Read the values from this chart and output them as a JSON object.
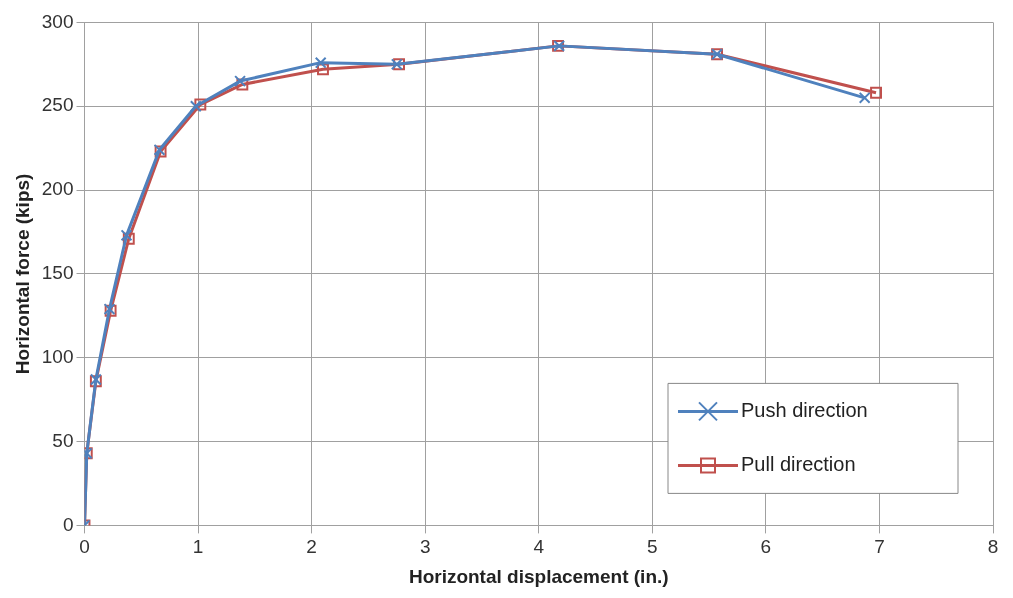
{
  "chart_data": {
    "type": "line",
    "xlabel": "Horizontal displacement (in.)",
    "ylabel": "Horizontal force (kips)",
    "xlim": [
      0,
      8
    ],
    "xticks": [
      0,
      1,
      2,
      3,
      4,
      5,
      6,
      7,
      8
    ],
    "ylim": [
      0,
      300
    ],
    "yticks": [
      0,
      50,
      100,
      150,
      200,
      250,
      300
    ],
    "grid": true,
    "legend": "bottom right",
    "series": [
      {
        "name": "Push direction",
        "color": "#4f81bd",
        "marker": "cross",
        "x": [
          0,
          0.02,
          0.1,
          0.22,
          0.37,
          0.66,
          0.98,
          1.37,
          2.08,
          2.75,
          4.18,
          5.57,
          6.87
        ],
        "values": [
          0,
          43,
          87,
          129,
          173,
          224,
          250,
          265,
          276,
          275,
          286,
          281,
          255
        ]
      },
      {
        "name": "Pull direction",
        "color": "#c0504d",
        "marker": "square",
        "x": [
          0,
          0.02,
          0.1,
          0.23,
          0.39,
          0.67,
          1.02,
          1.39,
          2.1,
          2.77,
          4.17,
          5.57,
          6.97
        ],
        "values": [
          0,
          43,
          86,
          128,
          171,
          223,
          251,
          263,
          272,
          275,
          286,
          281,
          258
        ]
      }
    ]
  }
}
